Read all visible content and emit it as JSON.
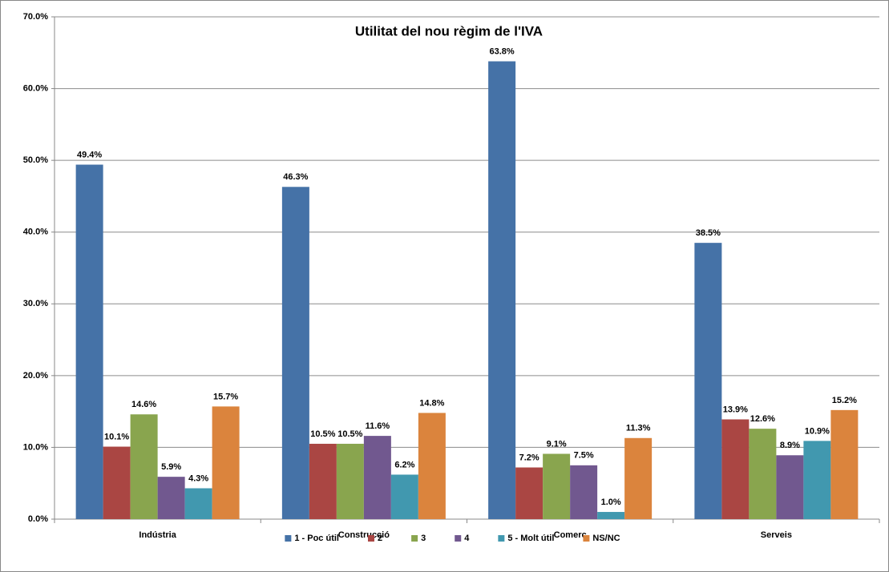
{
  "chart_data": {
    "type": "bar",
    "title": "Utilitat del nou règim de l'IVA",
    "categories": [
      "Indústria",
      "Construcció",
      "Comerç",
      "Serveis"
    ],
    "series": [
      {
        "name": "1 - Poc útil",
        "color": "#4572a7",
        "values": [
          49.4,
          46.3,
          63.8,
          38.5
        ],
        "value_labels": [
          "49.4%",
          "46.3%",
          "63.8%",
          "38.5%"
        ]
      },
      {
        "name": "2",
        "color": "#aa4643",
        "values": [
          10.1,
          10.5,
          7.2,
          13.9
        ],
        "value_labels": [
          "10.1%",
          "10.5%",
          "7.2%",
          "13.9%"
        ]
      },
      {
        "name": "3",
        "color": "#89a54e",
        "values": [
          14.6,
          10.5,
          9.1,
          12.6
        ],
        "value_labels": [
          "14.6%",
          "10.5%",
          "9.1%",
          "12.6%"
        ]
      },
      {
        "name": "4",
        "color": "#71588f",
        "values": [
          5.9,
          11.6,
          7.5,
          8.9
        ],
        "value_labels": [
          "5.9%",
          "11.6%",
          "7.5%",
          "8.9%"
        ]
      },
      {
        "name": "5 - Molt útil",
        "color": "#4198af",
        "values": [
          4.3,
          6.2,
          1.0,
          10.9
        ],
        "value_labels": [
          "4.3%",
          "6.2%",
          "1.0%",
          "10.9%"
        ]
      },
      {
        "name": "NS/NC",
        "color": "#db843d",
        "values": [
          15.7,
          14.8,
          11.3,
          15.2
        ],
        "value_labels": [
          "15.7%",
          "14.8%",
          "11.3%",
          "15.2%"
        ]
      }
    ],
    "ylim": [
      0,
      70
    ],
    "yticks": [
      {
        "value": 0,
        "label": "0.0%"
      },
      {
        "value": 10,
        "label": "10.0%"
      },
      {
        "value": 20,
        "label": "20.0%"
      },
      {
        "value": 30,
        "label": "30.0%"
      },
      {
        "value": 40,
        "label": "40.0%"
      },
      {
        "value": 50,
        "label": "50.0%"
      },
      {
        "value": 60,
        "label": "60.0%"
      },
      {
        "value": 70,
        "label": "70.0%"
      }
    ],
    "grid": true,
    "legend": "bottom"
  }
}
